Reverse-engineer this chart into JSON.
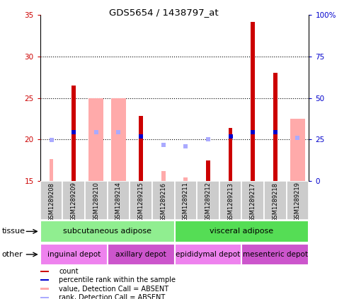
{
  "title": "GDS5654 / 1438797_at",
  "samples": [
    "GSM1289208",
    "GSM1289209",
    "GSM1289210",
    "GSM1289214",
    "GSM1289215",
    "GSM1289216",
    "GSM1289211",
    "GSM1289212",
    "GSM1289213",
    "GSM1289217",
    "GSM1289218",
    "GSM1289219"
  ],
  "count_values": [
    null,
    26.5,
    null,
    null,
    22.8,
    null,
    null,
    17.5,
    21.4,
    34.2,
    28.0,
    null
  ],
  "count_absent": [
    17.6,
    null,
    null,
    null,
    null,
    16.2,
    15.4,
    null,
    null,
    null,
    null,
    null
  ],
  "value_absent": [
    null,
    null,
    25.0,
    25.0,
    null,
    null,
    null,
    null,
    null,
    null,
    null,
    22.5
  ],
  "rank_values": [
    null,
    20.9,
    null,
    null,
    20.4,
    null,
    null,
    null,
    20.4,
    20.9,
    20.9,
    null
  ],
  "rank_absent": [
    19.9,
    null,
    20.9,
    20.9,
    null,
    19.3,
    19.2,
    20.0,
    null,
    null,
    null,
    20.2
  ],
  "ylim_left": [
    15,
    35
  ],
  "yticks_left": [
    15,
    20,
    25,
    30,
    35
  ],
  "ytick_right_labels": [
    "0",
    "25",
    "50",
    "75",
    "100%"
  ],
  "color_count": "#cc0000",
  "color_rank": "#0000cc",
  "color_absent_value": "#ffaaaa",
  "color_absent_rank": "#aaaaff",
  "tissue_row": [
    {
      "label": "subcutaneous adipose",
      "start": 0,
      "end": 6,
      "color": "#90ee90"
    },
    {
      "label": "visceral adipose",
      "start": 6,
      "end": 12,
      "color": "#55dd55"
    }
  ],
  "other_row": [
    {
      "label": "inguinal depot",
      "start": 0,
      "end": 3,
      "color": "#ee82ee"
    },
    {
      "label": "axillary depot",
      "start": 3,
      "end": 6,
      "color": "#cc55cc"
    },
    {
      "label": "epididymal depot",
      "start": 6,
      "end": 9,
      "color": "#ee82ee"
    },
    {
      "label": "mesenteric depot",
      "start": 9,
      "end": 12,
      "color": "#cc55cc"
    }
  ],
  "legend_items": [
    {
      "color": "#cc0000",
      "label": "count"
    },
    {
      "color": "#0000cc",
      "label": "percentile rank within the sample"
    },
    {
      "color": "#ffaaaa",
      "label": "value, Detection Call = ABSENT"
    },
    {
      "color": "#aaaaff",
      "label": "rank, Detection Call = ABSENT"
    }
  ]
}
